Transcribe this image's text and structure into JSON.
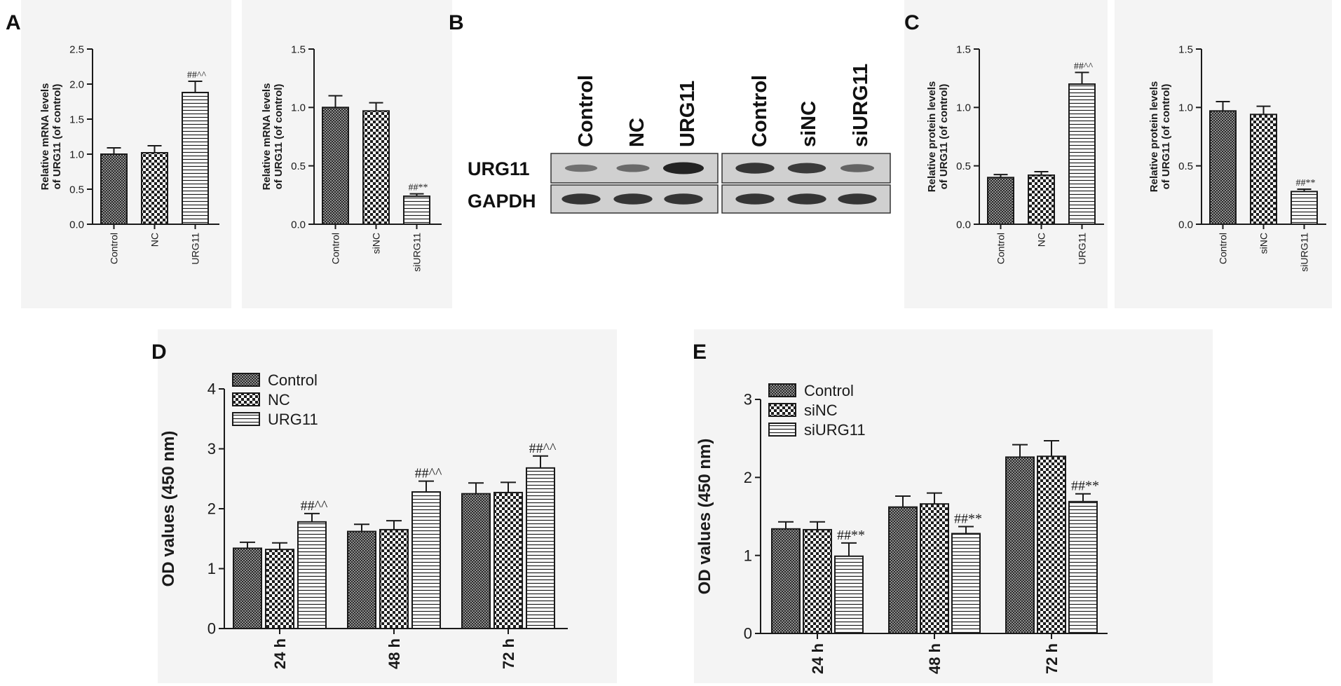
{
  "panels": {
    "A": "A",
    "B": "B",
    "C": "C",
    "D": "D",
    "E": "E"
  },
  "colors": {
    "ink": "#1a1a1a",
    "panel_bg": "#f4f4f4",
    "blot_bg": "#d0d0d0"
  },
  "blot": {
    "lanes": [
      "Control",
      "NC",
      "URG11",
      "Control",
      "siNC",
      "siURG11"
    ],
    "rows": [
      "URG11",
      "GAPDH"
    ],
    "urg11_intensity": [
      0.35,
      0.4,
      1.0,
      0.85,
      0.8,
      0.45
    ],
    "gapdh_intensity": [
      0.85,
      0.85,
      0.85,
      0.85,
      0.85,
      0.85
    ]
  },
  "chart_data": [
    {
      "id": "A1",
      "type": "bar",
      "categories": [
        "Control",
        "NC",
        "URG11"
      ],
      "values": [
        1.0,
        1.02,
        1.88
      ],
      "errors": [
        0.09,
        0.1,
        0.16
      ],
      "patterns": [
        "cross",
        "check",
        "hline"
      ],
      "annotations": [
        "",
        "",
        "##^^"
      ],
      "ylabel": "Relative mRNA levels\nof URG11 (of control)",
      "ylim": [
        0,
        2.5
      ],
      "yticks": [
        "0.0",
        "0.5",
        "1.0",
        "1.5",
        "2.0",
        "2.5"
      ]
    },
    {
      "id": "A2",
      "type": "bar",
      "categories": [
        "Control",
        "siNC",
        "siURG11"
      ],
      "values": [
        1.0,
        0.97,
        0.24
      ],
      "errors": [
        0.1,
        0.07,
        0.02
      ],
      "patterns": [
        "cross",
        "check",
        "hline"
      ],
      "annotations": [
        "",
        "",
        "##**"
      ],
      "ylabel": "Relative mRNA levels\nof URG11 (of control)",
      "ylim": [
        0,
        1.5
      ],
      "yticks": [
        "0.0",
        "0.5",
        "1.0",
        "1.5"
      ]
    },
    {
      "id": "C1",
      "type": "bar",
      "categories": [
        "Control",
        "NC",
        "URG11"
      ],
      "values": [
        0.4,
        0.42,
        1.2
      ],
      "errors": [
        0.025,
        0.03,
        0.1
      ],
      "patterns": [
        "cross",
        "check",
        "hline"
      ],
      "annotations": [
        "",
        "",
        "##^^"
      ],
      "ylabel": "Relative protein levels\nof URG11 (of control)",
      "ylim": [
        0,
        1.5
      ],
      "yticks": [
        "0.0",
        "0.5",
        "1.0",
        "1.5"
      ]
    },
    {
      "id": "C2",
      "type": "bar",
      "categories": [
        "Control",
        "siNC",
        "siURG11"
      ],
      "values": [
        0.97,
        0.94,
        0.28
      ],
      "errors": [
        0.08,
        0.07,
        0.02
      ],
      "patterns": [
        "cross",
        "check",
        "hline"
      ],
      "annotations": [
        "",
        "",
        "##**"
      ],
      "ylabel": "Relative protein levels\nof URG11 (of control)",
      "ylim": [
        0,
        1.5
      ],
      "yticks": [
        "0.0",
        "0.5",
        "1.0",
        "1.5"
      ]
    },
    {
      "id": "D",
      "type": "bar",
      "categories": [
        "24 h",
        "48 h",
        "72 h"
      ],
      "series": [
        {
          "name": "Control",
          "pattern": "cross",
          "values": [
            1.34,
            1.62,
            2.25
          ],
          "errors": [
            0.1,
            0.12,
            0.18
          ]
        },
        {
          "name": "NC",
          "pattern": "check",
          "values": [
            1.32,
            1.65,
            2.27
          ],
          "errors": [
            0.11,
            0.15,
            0.17
          ]
        },
        {
          "name": "URG11",
          "pattern": "hline",
          "values": [
            1.78,
            2.28,
            2.68
          ],
          "errors": [
            0.14,
            0.18,
            0.2
          ]
        }
      ],
      "annotations": [
        "##^^",
        "##^^",
        "##^^"
      ],
      "ylabel": "OD values (450 nm)",
      "ylim": [
        0,
        4
      ],
      "yticks": [
        "0",
        "1",
        "2",
        "3",
        "4"
      ],
      "legend": "top-left"
    },
    {
      "id": "E",
      "type": "bar",
      "categories": [
        "24 h",
        "48 h",
        "72 h"
      ],
      "series": [
        {
          "name": "Control",
          "pattern": "cross",
          "values": [
            1.34,
            1.62,
            2.26
          ],
          "errors": [
            0.09,
            0.14,
            0.16
          ]
        },
        {
          "name": "siNC",
          "pattern": "check",
          "values": [
            1.33,
            1.66,
            2.27
          ],
          "errors": [
            0.1,
            0.14,
            0.2
          ]
        },
        {
          "name": "siURG11",
          "pattern": "hline",
          "values": [
            0.99,
            1.28,
            1.69
          ],
          "errors": [
            0.17,
            0.09,
            0.1
          ]
        }
      ],
      "annotations": [
        "##**",
        "##**",
        "##**"
      ],
      "ylabel": "OD values (450 nm)",
      "ylim": [
        0,
        3
      ],
      "yticks": [
        "0",
        "1",
        "2",
        "3"
      ],
      "legend": "top-left"
    }
  ]
}
